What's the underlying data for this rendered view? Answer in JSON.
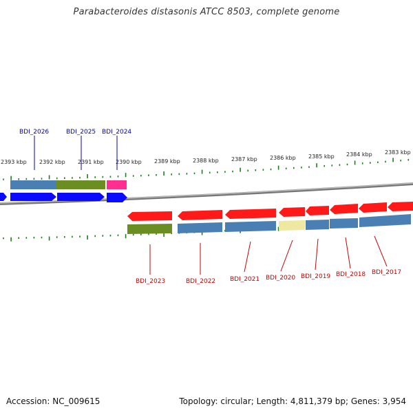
{
  "title": "Parabacteroides distasonis ATCC 8503, complete genome",
  "footer": {
    "accession": "Accession: NC_009615",
    "summary": "Topology: circular; Length: 4,811,379 bp; Genes: 3,954"
  },
  "colors": {
    "forward_label": "#0000bb",
    "reverse_label": "#cc0000",
    "cds_forward": "#0a0aff",
    "cds_reverse": "#ff1a1a",
    "cog_blue": "#4a7fb4",
    "cog_green": "#6b8e23",
    "cog_pink": "#ff2e8f",
    "cog_yellow": "#eee8a0",
    "ticks": "#1a7f1a",
    "backbone": "#888888"
  },
  "scale_labels": [
    "2393 kbp",
    "2392 kbp",
    "2391 kbp",
    "2390 kbp",
    "2389 kbp",
    "2388 kbp",
    "2387 kbp",
    "2386 kbp",
    "2385 kbp",
    "2384 kbp",
    "2383 kbp"
  ],
  "forward_genes": [
    "BDI_2026",
    "BDI_2025",
    "BDI_2024"
  ],
  "reverse_genes": [
    "BDI_2023",
    "BDI_2022",
    "BDI_2021",
    "BDI_2020",
    "BDI_2019",
    "BDI_2018",
    "BDI_2017"
  ]
}
